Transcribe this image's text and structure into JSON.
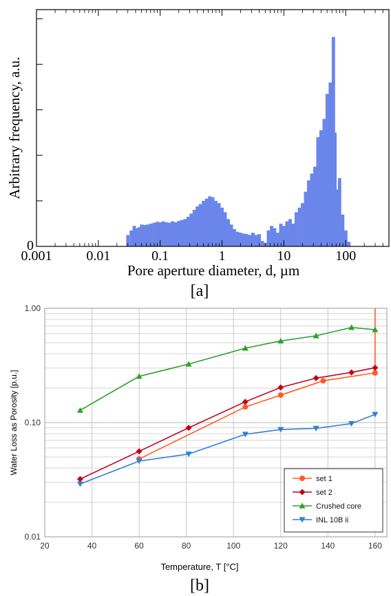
{
  "figure": {
    "panel_a_caption": "[a]",
    "panel_b_caption": "[b]"
  },
  "chart_data": [
    {
      "type": "bar",
      "xlabel": "Pore aperture diameter, d,  µm",
      "ylabel": "Arbitrary frequency, a.u.",
      "xscale": "log",
      "xlim": [
        0.001,
        500
      ],
      "ylim": [
        0,
        5.2
      ],
      "x_tick_labels": [
        "0.001",
        "0.01",
        "0.1",
        "1",
        "10",
        "100"
      ],
      "y_tick_labels": [
        "0"
      ],
      "grid": false,
      "color": "#6a86ea",
      "bins": [
        [
          0.03,
          0.25
        ],
        [
          0.034,
          0.35
        ],
        [
          0.038,
          0.45
        ],
        [
          0.042,
          0.4
        ],
        [
          0.046,
          0.42
        ],
        [
          0.05,
          0.48
        ],
        [
          0.056,
          0.47
        ],
        [
          0.063,
          0.48
        ],
        [
          0.071,
          0.5
        ],
        [
          0.08,
          0.52
        ],
        [
          0.09,
          0.54
        ],
        [
          0.1,
          0.53
        ],
        [
          0.112,
          0.55
        ],
        [
          0.126,
          0.53
        ],
        [
          0.141,
          0.52
        ],
        [
          0.158,
          0.55
        ],
        [
          0.178,
          0.53
        ],
        [
          0.2,
          0.56
        ],
        [
          0.224,
          0.58
        ],
        [
          0.251,
          0.6
        ],
        [
          0.282,
          0.65
        ],
        [
          0.316,
          0.72
        ],
        [
          0.355,
          0.8
        ],
        [
          0.398,
          0.88
        ],
        [
          0.447,
          0.93
        ],
        [
          0.501,
          1.0
        ],
        [
          0.562,
          1.05
        ],
        [
          0.631,
          1.1
        ],
        [
          0.708,
          1.08
        ],
        [
          0.794,
          1.0
        ],
        [
          0.891,
          0.95
        ],
        [
          1.0,
          0.85
        ],
        [
          1.12,
          0.75
        ],
        [
          1.26,
          0.6
        ],
        [
          1.41,
          0.48
        ],
        [
          1.58,
          0.38
        ],
        [
          1.78,
          0.32
        ],
        [
          2.0,
          0.3
        ],
        [
          2.24,
          0.28
        ],
        [
          2.51,
          0.27
        ],
        [
          2.82,
          0.25
        ],
        [
          3.16,
          0.3
        ],
        [
          3.55,
          0.25
        ],
        [
          3.98,
          0.27
        ],
        [
          4.47,
          0.12
        ],
        [
          5.01,
          0.08
        ],
        [
          5.62,
          0.35
        ],
        [
          6.31,
          0.45
        ],
        [
          7.08,
          0.4
        ],
        [
          7.94,
          0.3
        ],
        [
          8.91,
          0.5
        ],
        [
          10.0,
          0.45
        ],
        [
          11.2,
          0.55
        ],
        [
          12.6,
          0.6
        ],
        [
          14.1,
          0.5
        ],
        [
          15.8,
          0.75
        ],
        [
          17.8,
          0.85
        ],
        [
          20.0,
          0.95
        ],
        [
          22.4,
          1.2
        ],
        [
          25.1,
          1.45
        ],
        [
          28.2,
          1.6
        ],
        [
          31.6,
          1.75
        ],
        [
          35.5,
          2.4
        ],
        [
          39.8,
          2.55
        ],
        [
          44.7,
          2.8
        ],
        [
          50.1,
          3.35
        ],
        [
          56.2,
          3.6
        ],
        [
          60.3,
          3.35
        ],
        [
          63.1,
          4.6
        ],
        [
          66.8,
          2.5
        ],
        [
          70.8,
          1.25
        ],
        [
          79.4,
          1.5
        ],
        [
          89.1,
          0.7
        ],
        [
          100.0,
          0.35
        ],
        [
          112.2,
          0.1
        ]
      ]
    },
    {
      "type": "line",
      "xlabel": "Temperature, T [°C]",
      "ylabel": "Water Loss as Porosity [p.u.]",
      "xlim": [
        20,
        165
      ],
      "ylim": [
        0.01,
        1.0
      ],
      "yscale": "log",
      "x_tick_labels": [
        "20",
        "40",
        "60",
        "80",
        "100",
        "120",
        "140",
        "160"
      ],
      "y_tick_labels": [
        "0.01",
        "0.10",
        "1.00"
      ],
      "grid": true,
      "legend_position": "bottom-right",
      "series": [
        {
          "name": "set 1",
          "color": "#ff5a23",
          "marker": "circle",
          "x": [
            60,
            105,
            120,
            138,
            160,
            160
          ],
          "y": [
            0.048,
            0.137,
            0.174,
            0.232,
            0.272,
            1.0
          ]
        },
        {
          "name": "set 2",
          "color": "#c5001a",
          "marker": "diamond",
          "x": [
            35,
            60,
            81,
            105,
            120,
            135,
            150,
            160
          ],
          "y": [
            0.032,
            0.056,
            0.09,
            0.152,
            0.203,
            0.245,
            0.275,
            0.302
          ]
        },
        {
          "name": "Crushed core",
          "color": "#2ea02c",
          "marker": "triangle-up",
          "x": [
            35,
            60,
            81,
            105,
            120,
            135,
            150,
            160
          ],
          "y": [
            0.128,
            0.254,
            0.325,
            0.448,
            0.518,
            0.575,
            0.68,
            0.65
          ]
        },
        {
          "name": "INL 10B ii",
          "color": "#2f7fd4",
          "marker": "triangle-down",
          "x": [
            35,
            60,
            81,
            105,
            120,
            135,
            150,
            160
          ],
          "y": [
            0.029,
            0.046,
            0.053,
            0.079,
            0.087,
            0.089,
            0.098,
            0.118
          ]
        }
      ]
    }
  ]
}
